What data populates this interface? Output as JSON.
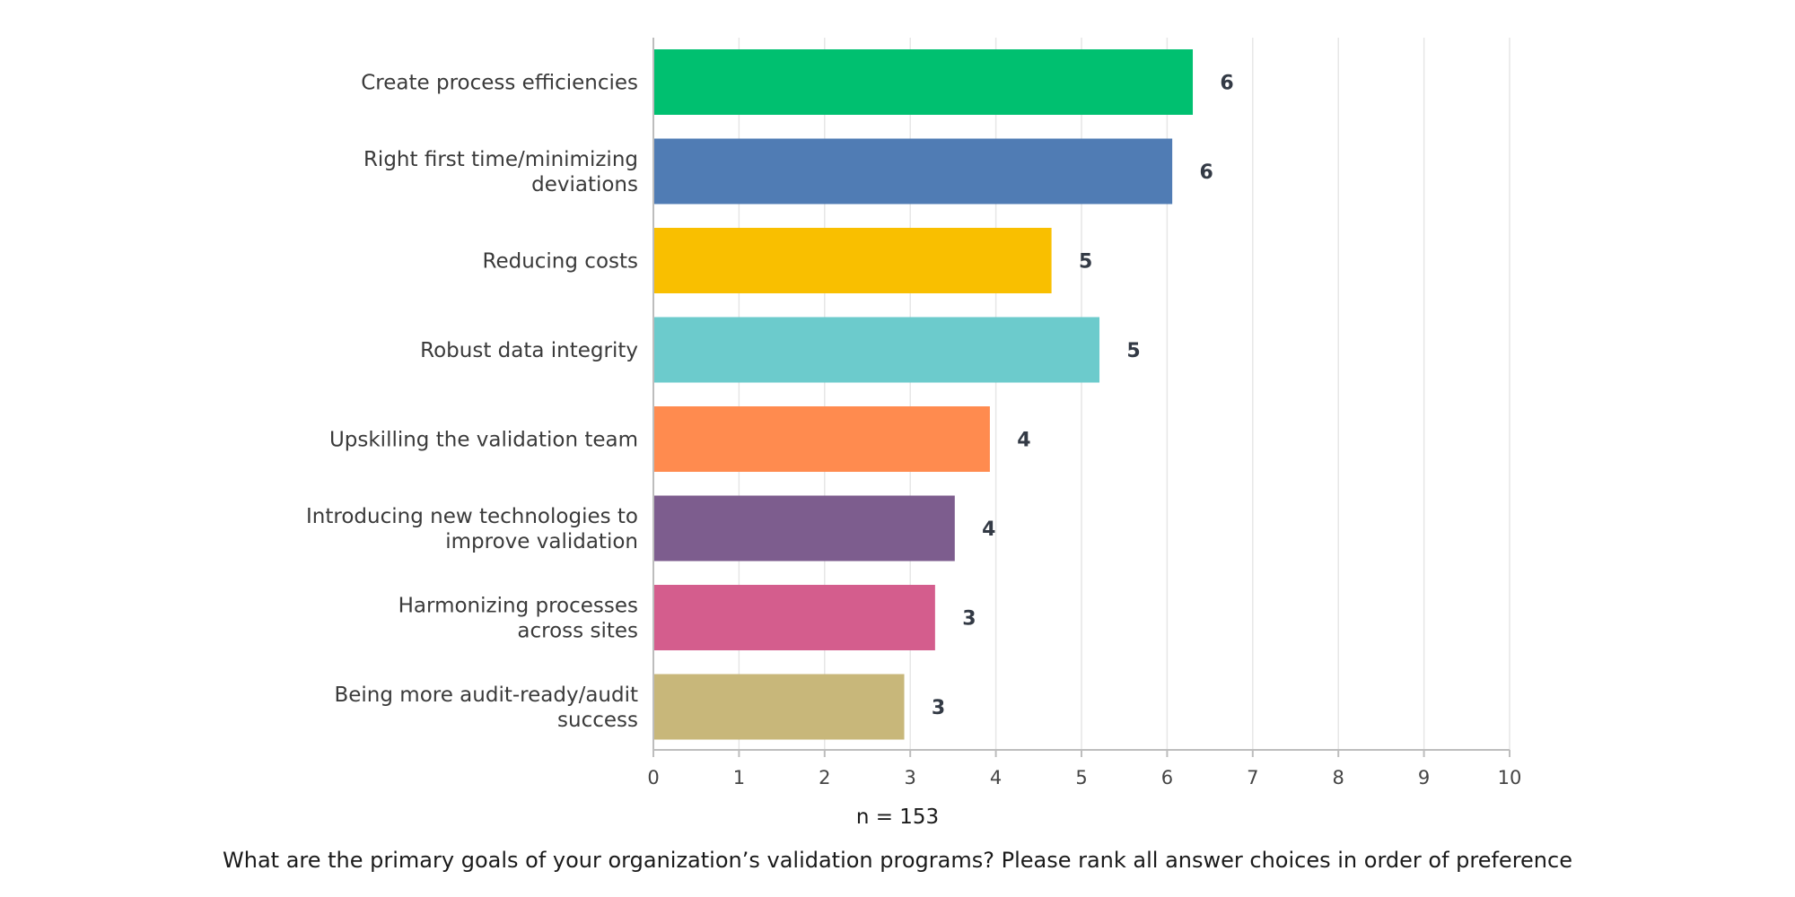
{
  "chart_data": {
    "type": "bar",
    "orientation": "horizontal",
    "categories": [
      [
        "Create process efficiencies"
      ],
      [
        "Right first time/minimizing",
        "deviations"
      ],
      [
        "Reducing costs"
      ],
      [
        "Robust data integrity"
      ],
      [
        "Upskilling the validation team"
      ],
      [
        "Introducing new technologies to",
        "improve validation"
      ],
      [
        "Harmonizing processes",
        "across sites"
      ],
      [
        "Being more audit-ready/audit",
        "success"
      ]
    ],
    "values": [
      6.3,
      6.06,
      4.65,
      5.21,
      3.93,
      3.52,
      3.29,
      2.93
    ],
    "data_labels": [
      "6",
      "6",
      "5",
      "5",
      "4",
      "4",
      "3",
      "3"
    ],
    "colors": [
      "#00c070",
      "#507cb4",
      "#f9bf00",
      "#6ccbcc",
      "#ff8b4f",
      "#7d5d8e",
      "#d45d8d",
      "#c8b77a"
    ],
    "xlim": [
      0,
      10
    ],
    "x_ticks": [
      "0",
      "1",
      "2",
      "3",
      "4",
      "5",
      "6",
      "7",
      "8",
      "9",
      "10"
    ],
    "grid": true,
    "n_label": "n = 153",
    "question": "What are the primary goals of your organization’s validation programs? Please rank all answer choices in order of preference"
  }
}
